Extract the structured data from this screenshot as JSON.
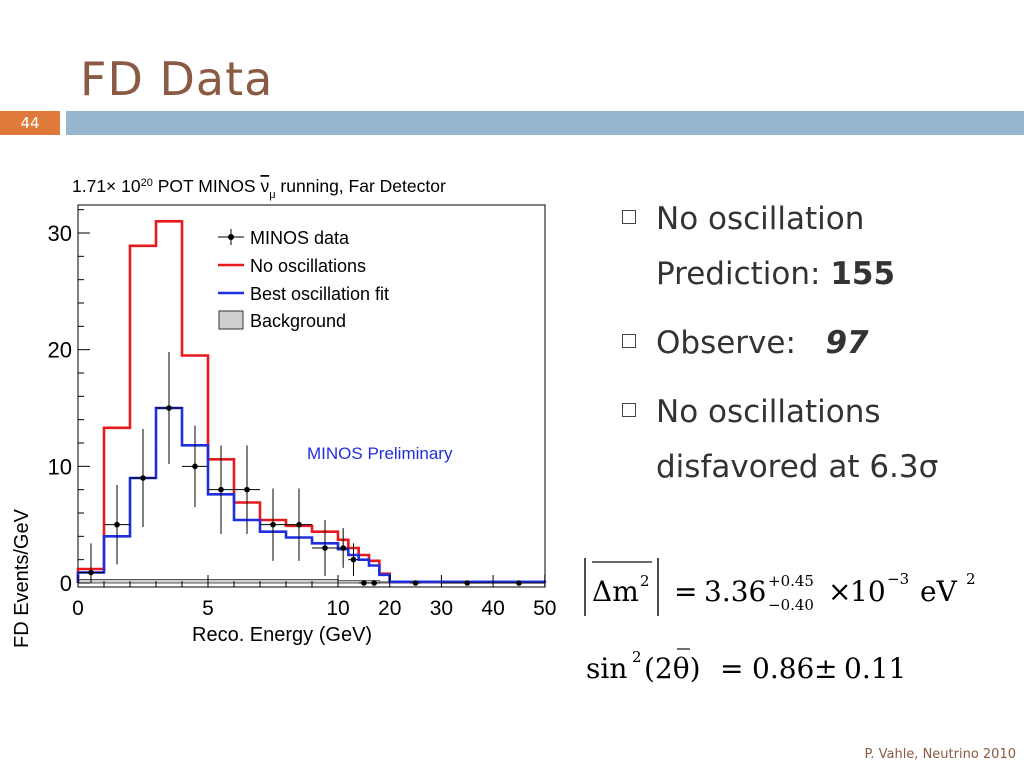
{
  "slide": {
    "title": "FD Data",
    "number": "44",
    "footer": "P. Vahle, Neutrino 2010"
  },
  "bullets": [
    {
      "text": "No oscillation Prediction: ",
      "bold": "155"
    },
    {
      "text": "Observe:   ",
      "bold": "97"
    },
    {
      "text": "No oscillations disfavored at 6.3σ",
      "bold": ""
    }
  ],
  "formulas": {
    "f1": {
      "lhs": "Δm",
      "sup": "2",
      "eq": "=",
      "value": "3.36",
      "plus": "+0.45",
      "minus": "−0.40",
      "times": "×",
      "base": "10",
      "exp": "−3",
      "unit": "eV",
      "unit_exp": "2"
    },
    "f2": {
      "func": "sin",
      "sup": "2",
      "arg": "(2θ)",
      "eq": "=",
      "value": "0.86",
      "pm": "±",
      "err": "0.11"
    }
  },
  "chart_data": {
    "type": "line",
    "title": "1.71× 10^20 POT MINOS ν̄μ running, Far Detector",
    "title_parts": {
      "a": "1.71× 10",
      "exp": "20",
      "b": " POT MINOS ",
      "nu": "ν",
      "mu": "μ",
      "c": " running, Far Detector"
    },
    "xlabel": "Reco. Energy (GeV)",
    "ylabel": "FD Events/GeV",
    "annotation": "MINOS Preliminary",
    "x_tick_labels": [
      "0",
      "5",
      "10",
      "20",
      "30",
      "40",
      "50"
    ],
    "y_tick_labels": [
      "0",
      "10",
      "20",
      "30"
    ],
    "ylim": [
      0,
      33
    ],
    "legend_position": "top-right",
    "bin_edges": [
      0,
      1,
      2,
      3,
      4,
      5,
      6,
      7,
      8,
      9,
      10,
      12,
      14,
      16,
      18,
      20,
      30,
      40,
      50
    ],
    "series": [
      {
        "name": "No oscillations",
        "color": "#e8191e",
        "values": [
          1.2,
          13.3,
          28.9,
          31.0,
          19.5,
          10.6,
          6.9,
          5.4,
          4.9,
          4.4,
          3.7,
          3.0,
          2.4,
          1.9,
          0.8,
          0.1,
          0.1,
          0.1
        ]
      },
      {
        "name": "Best oscillation fit",
        "color": "#1f2fe0",
        "values": [
          0.9,
          4.0,
          9.0,
          15.0,
          11.8,
          7.6,
          5.4,
          4.4,
          3.9,
          3.4,
          2.9,
          2.4,
          2.0,
          1.5,
          0.7,
          0.1,
          0.1,
          0.1
        ]
      },
      {
        "name": "Background",
        "color": "#bdbdbd",
        "values": [
          0.3,
          0.3,
          0.3,
          0.3,
          0.3,
          0.3,
          0.3,
          0.3,
          0.3,
          0.3,
          0.2,
          0.2,
          0.2,
          0.2,
          0.1,
          0.05,
          0.05,
          0.05
        ]
      }
    ],
    "data_points": {
      "name": "MINOS data",
      "x": [
        0.5,
        1.5,
        2.5,
        3.5,
        4.5,
        5.5,
        6.5,
        7.5,
        8.5,
        9.5,
        11,
        13,
        15,
        17,
        25,
        35,
        45
      ],
      "y": [
        0.9,
        5.0,
        9.0,
        15.0,
        10.0,
        8.0,
        8.0,
        5.0,
        5.0,
        3.0,
        3.0,
        2.0,
        0.0,
        0.0,
        0.0,
        0.0,
        0.0
      ],
      "err": [
        2.5,
        3.4,
        4.2,
        4.8,
        3.5,
        3.8,
        3.8,
        3.1,
        3.1,
        2.4,
        1.7,
        1.4,
        0.0,
        0.0,
        0.0,
        0.0,
        0.0
      ]
    }
  }
}
